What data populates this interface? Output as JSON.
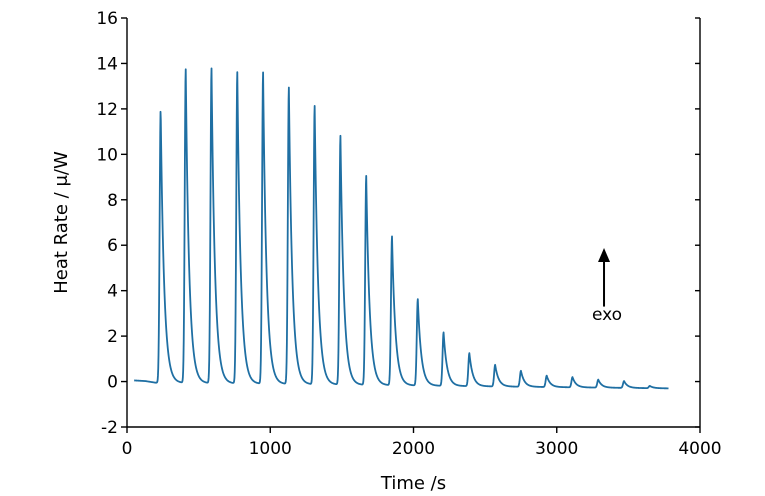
{
  "chart_data": {
    "type": "line",
    "title": "",
    "xlabel": "Time /s",
    "ylabel": "Heat Rate / μ/W",
    "xlim": [
      0,
      4000
    ],
    "ylim": [
      -2,
      16
    ],
    "xticks": [
      0,
      1000,
      2000,
      3000,
      4000
    ],
    "yticks": [
      -2,
      0,
      2,
      4,
      6,
      8,
      10,
      12,
      14,
      16
    ],
    "grid": false,
    "line_color": "#1f6fa3",
    "series": [
      {
        "name": "Heat Rate",
        "baseline": [
          [
            50,
            0.05
          ],
          [
            130,
            0.02
          ],
          [
            200,
            -0.05
          ],
          [
            3780,
            -0.3
          ]
        ],
        "peaks": [
          {
            "t": 235,
            "h": 12.05
          },
          {
            "t": 410,
            "h": 13.8
          },
          {
            "t": 590,
            "h": 13.85
          },
          {
            "t": 770,
            "h": 13.7
          },
          {
            "t": 950,
            "h": 13.7
          },
          {
            "t": 1130,
            "h": 13.05
          },
          {
            "t": 1310,
            "h": 12.25
          },
          {
            "t": 1490,
            "h": 10.95
          },
          {
            "t": 1670,
            "h": 9.2
          },
          {
            "t": 1850,
            "h": 6.55
          },
          {
            "t": 2030,
            "h": 3.8
          },
          {
            "t": 2210,
            "h": 2.35
          },
          {
            "t": 2390,
            "h": 1.45
          },
          {
            "t": 2570,
            "h": 0.95
          },
          {
            "t": 2750,
            "h": 0.7
          },
          {
            "t": 2930,
            "h": 0.5
          },
          {
            "t": 3110,
            "h": 0.45
          },
          {
            "t": 3290,
            "h": 0.35
          },
          {
            "t": 3470,
            "h": 0.3
          },
          {
            "t": 3650,
            "h": 0.1
          }
        ]
      }
    ],
    "annotations": [
      {
        "text": "exo",
        "x": 3330,
        "y_text": 2.5,
        "arrow_from": 3.3,
        "arrow_to": 5.7
      }
    ]
  }
}
